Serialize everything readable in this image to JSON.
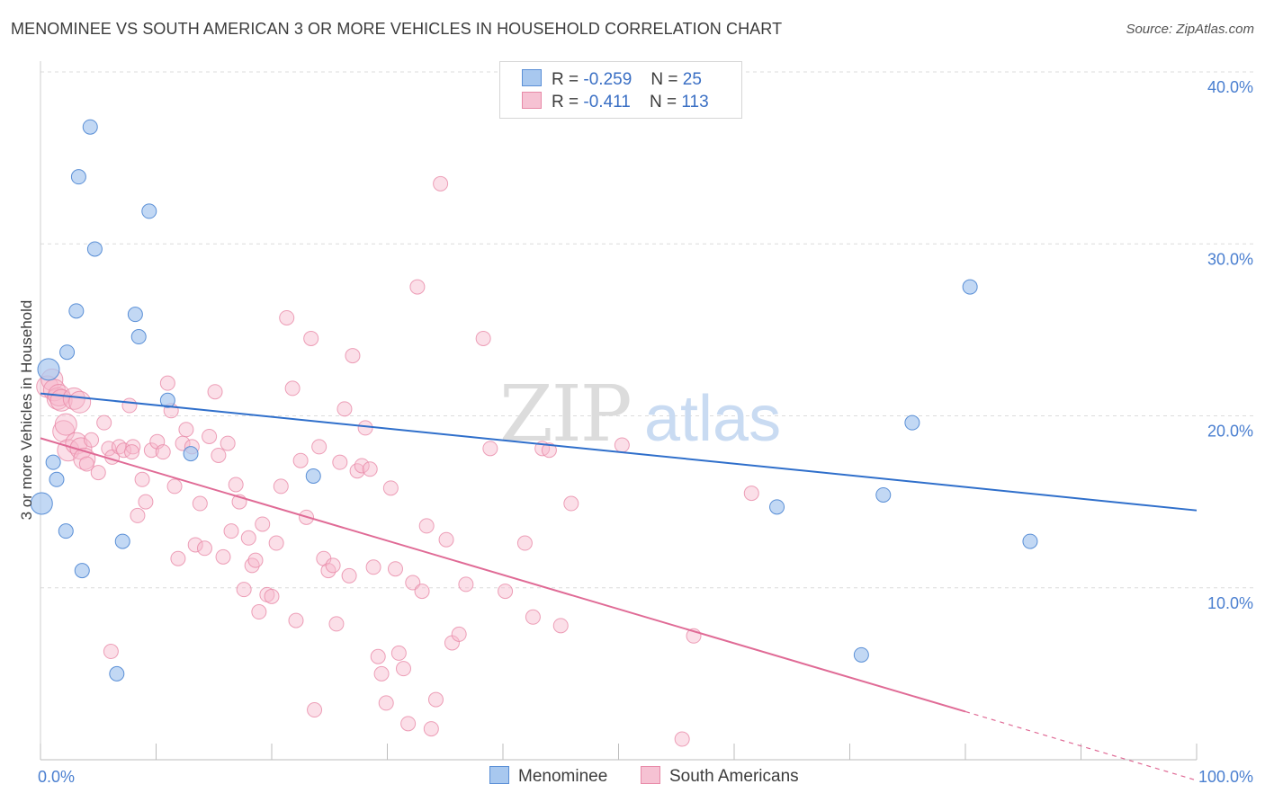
{
  "title": "MENOMINEE VS SOUTH AMERICAN 3 OR MORE VEHICLES IN HOUSEHOLD CORRELATION CHART",
  "source": "Source: ZipAtlas.com",
  "watermark": {
    "zip": "ZIP",
    "atlas": "atlas"
  },
  "colors": {
    "blue_fill": "#a8c8ef",
    "blue_stroke": "#5a8fd6",
    "blue_line": "#2f6fcb",
    "pink_fill": "#f6b9cc",
    "pink_stroke": "#e88aa8",
    "pink_line": "#e06b96",
    "axis_text": "#4a7fd0",
    "grid": "#dcdcdc"
  },
  "legend": {
    "r_label": "R =",
    "n_label": "N =",
    "rows": [
      {
        "r": "-0.259",
        "n": "25"
      },
      {
        "r": "-0.411",
        "n": "113"
      }
    ]
  },
  "bottom_legend": {
    "series1": "Menominee",
    "series2": "South Americans"
  },
  "chart_data": {
    "type": "scatter",
    "title": "MENOMINEE VS SOUTH AMERICAN 3 OR MORE VEHICLES IN HOUSEHOLD CORRELATION CHART",
    "xlabel": "",
    "ylabel": "3 or more Vehicles in Household",
    "xlim": [
      0,
      100
    ],
    "ylim": [
      0,
      40
    ],
    "x_tick_labels": [
      "0.0%",
      "100.0%"
    ],
    "y_ticks": [
      10,
      20,
      30,
      40
    ],
    "y_tick_labels": [
      "10.0%",
      "20.0%",
      "30.0%",
      "40.0%"
    ],
    "grid": true,
    "legend_position": "top-center",
    "series": [
      {
        "name": "Menominee",
        "r": -0.259,
        "n": 25,
        "trend": {
          "x": [
            0,
            100
          ],
          "y": [
            21.3,
            14.5
          ]
        },
        "points": [
          [
            0.1,
            14.9
          ],
          [
            0.7,
            22.7
          ],
          [
            1.1,
            17.3
          ],
          [
            1.4,
            16.3
          ],
          [
            2.2,
            13.3
          ],
          [
            2.3,
            23.7
          ],
          [
            3.1,
            26.1
          ],
          [
            3.3,
            33.9
          ],
          [
            3.6,
            11.0
          ],
          [
            4.3,
            36.8
          ],
          [
            4.7,
            29.7
          ],
          [
            6.6,
            5.0
          ],
          [
            7.1,
            12.7
          ],
          [
            8.2,
            25.9
          ],
          [
            8.5,
            24.6
          ],
          [
            9.4,
            31.9
          ],
          [
            11.0,
            20.9
          ],
          [
            13.0,
            17.8
          ],
          [
            23.6,
            16.5
          ],
          [
            63.7,
            14.7
          ],
          [
            71.0,
            6.1
          ],
          [
            72.9,
            15.4
          ],
          [
            75.4,
            19.6
          ],
          [
            80.4,
            27.5
          ],
          [
            85.6,
            12.7
          ]
        ]
      },
      {
        "name": "South Americans",
        "r": -0.411,
        "n": 113,
        "trend": {
          "x": [
            0,
            80
          ],
          "y": [
            18.7,
            2.8
          ]
        },
        "trend_dashed": {
          "x": [
            80,
            100
          ],
          "y": [
            2.8,
            -1.2
          ]
        },
        "points": [
          [
            0.6,
            21.7
          ],
          [
            1.0,
            22.1
          ],
          [
            1.2,
            21.5
          ],
          [
            1.5,
            21.0
          ],
          [
            1.6,
            21.2
          ],
          [
            1.8,
            20.9
          ],
          [
            2.0,
            19.1
          ],
          [
            2.2,
            19.5
          ],
          [
            2.4,
            18.0
          ],
          [
            2.9,
            21.0
          ],
          [
            3.1,
            18.4
          ],
          [
            3.5,
            18.1
          ],
          [
            3.8,
            17.5
          ],
          [
            4.0,
            17.2
          ],
          [
            4.4,
            18.6
          ],
          [
            5.0,
            16.7
          ],
          [
            5.5,
            19.6
          ],
          [
            5.9,
            18.1
          ],
          [
            6.2,
            17.6
          ],
          [
            6.8,
            18.2
          ],
          [
            7.2,
            18.0
          ],
          [
            7.7,
            20.6
          ],
          [
            8.0,
            18.2
          ],
          [
            8.4,
            14.2
          ],
          [
            8.8,
            16.3
          ],
          [
            9.1,
            15.0
          ],
          [
            9.6,
            18.0
          ],
          [
            10.1,
            18.5
          ],
          [
            10.6,
            17.9
          ],
          [
            11.0,
            21.9
          ],
          [
            11.3,
            20.3
          ],
          [
            11.6,
            15.9
          ],
          [
            11.9,
            11.7
          ],
          [
            12.3,
            18.4
          ],
          [
            12.6,
            19.2
          ],
          [
            13.1,
            18.2
          ],
          [
            13.4,
            12.5
          ],
          [
            13.8,
            14.9
          ],
          [
            14.2,
            12.3
          ],
          [
            14.6,
            18.8
          ],
          [
            15.1,
            21.4
          ],
          [
            15.4,
            17.7
          ],
          [
            15.8,
            11.8
          ],
          [
            16.2,
            18.4
          ],
          [
            16.5,
            13.3
          ],
          [
            16.9,
            16.0
          ],
          [
            17.2,
            15.0
          ],
          [
            17.6,
            9.9
          ],
          [
            18.0,
            12.9
          ],
          [
            18.3,
            11.3
          ],
          [
            18.6,
            11.6
          ],
          [
            18.9,
            8.6
          ],
          [
            19.2,
            13.7
          ],
          [
            19.6,
            9.6
          ],
          [
            20.0,
            9.5
          ],
          [
            20.4,
            12.6
          ],
          [
            20.8,
            15.9
          ],
          [
            21.3,
            25.7
          ],
          [
            21.8,
            21.6
          ],
          [
            22.1,
            8.1
          ],
          [
            22.5,
            17.4
          ],
          [
            23.0,
            14.1
          ],
          [
            23.4,
            24.5
          ],
          [
            23.7,
            2.9
          ],
          [
            24.1,
            18.2
          ],
          [
            24.5,
            11.7
          ],
          [
            24.9,
            11.0
          ],
          [
            25.3,
            11.3
          ],
          [
            25.6,
            7.9
          ],
          [
            25.9,
            17.3
          ],
          [
            26.3,
            20.4
          ],
          [
            26.7,
            10.7
          ],
          [
            27.0,
            23.5
          ],
          [
            27.4,
            16.8
          ],
          [
            27.8,
            17.1
          ],
          [
            28.1,
            19.3
          ],
          [
            28.5,
            16.9
          ],
          [
            28.8,
            11.2
          ],
          [
            29.2,
            6.0
          ],
          [
            29.5,
            5.0
          ],
          [
            29.9,
            3.3
          ],
          [
            30.3,
            15.8
          ],
          [
            30.7,
            11.1
          ],
          [
            31.0,
            6.2
          ],
          [
            31.4,
            5.3
          ],
          [
            31.8,
            2.1
          ],
          [
            32.2,
            10.3
          ],
          [
            32.6,
            27.5
          ],
          [
            33.0,
            9.8
          ],
          [
            33.4,
            13.6
          ],
          [
            33.8,
            1.8
          ],
          [
            34.2,
            3.5
          ],
          [
            34.6,
            33.5
          ],
          [
            35.1,
            12.8
          ],
          [
            35.6,
            6.8
          ],
          [
            36.2,
            7.3
          ],
          [
            36.8,
            10.2
          ],
          [
            38.3,
            24.5
          ],
          [
            38.9,
            18.1
          ],
          [
            40.2,
            9.8
          ],
          [
            41.9,
            12.6
          ],
          [
            42.6,
            8.3
          ],
          [
            43.4,
            18.1
          ],
          [
            44.0,
            18.0
          ],
          [
            45.0,
            7.8
          ],
          [
            45.9,
            14.9
          ],
          [
            50.3,
            18.3
          ],
          [
            55.5,
            1.2
          ],
          [
            56.5,
            7.2
          ],
          [
            61.5,
            15.5
          ],
          [
            3.4,
            20.8
          ],
          [
            6.1,
            6.3
          ],
          [
            7.9,
            17.9
          ]
        ]
      }
    ]
  }
}
